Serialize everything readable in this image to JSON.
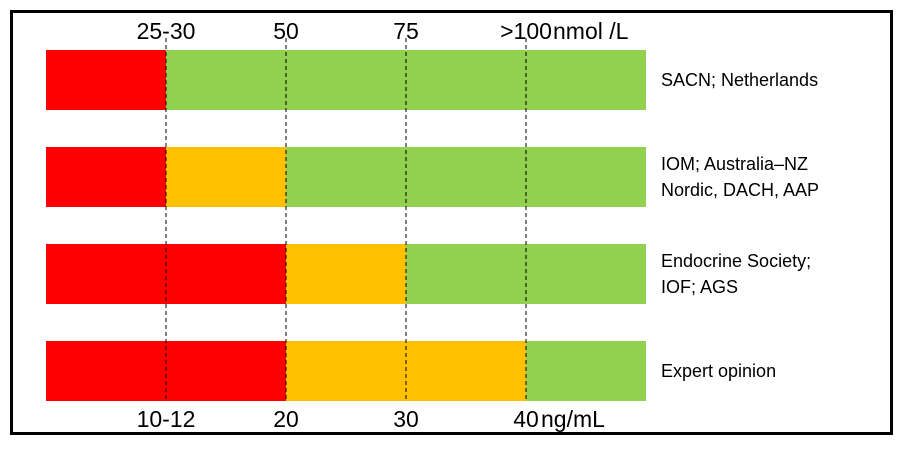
{
  "chart_data": {
    "type": "bar",
    "orientation": "horizontal-stacked",
    "top_axis": {
      "unit": "nmol/L",
      "ticks": [
        "25-30",
        "50",
        "75",
        ">100"
      ],
      "unit_label": "nmol /L"
    },
    "bottom_axis": {
      "unit": "ng/mL",
      "ticks": [
        "10-12",
        "20",
        "30",
        "40"
      ],
      "unit_label": "ng/mL"
    },
    "scale_ng_ml": [
      0,
      10,
      20,
      30,
      40,
      50
    ],
    "colors": {
      "red": "#ff0000",
      "orange": "#ffc000",
      "green": "#92d050"
    },
    "rows": [
      {
        "label_lines": [
          "SACN; Netherlands"
        ],
        "segments": [
          {
            "from": 0,
            "to": 10,
            "color": "red"
          },
          {
            "from": 10,
            "to": 50,
            "color": "green"
          }
        ]
      },
      {
        "label_lines": [
          "IOM; Australia–NZ",
          "Nordic, DACH, AAP"
        ],
        "segments": [
          {
            "from": 0,
            "to": 10,
            "color": "red"
          },
          {
            "from": 10,
            "to": 20,
            "color": "orange"
          },
          {
            "from": 20,
            "to": 50,
            "color": "green"
          }
        ]
      },
      {
        "label_lines": [
          "Endocrine Society;",
          "IOF; AGS"
        ],
        "segments": [
          {
            "from": 0,
            "to": 20,
            "color": "red"
          },
          {
            "from": 20,
            "to": 30,
            "color": "orange"
          },
          {
            "from": 30,
            "to": 50,
            "color": "green"
          }
        ]
      },
      {
        "label_lines": [
          "Expert opinion"
        ],
        "segments": [
          {
            "from": 0,
            "to": 20,
            "color": "red"
          },
          {
            "from": 20,
            "to": 40,
            "color": "orange"
          },
          {
            "from": 40,
            "to": 50,
            "color": "green"
          }
        ]
      }
    ]
  }
}
